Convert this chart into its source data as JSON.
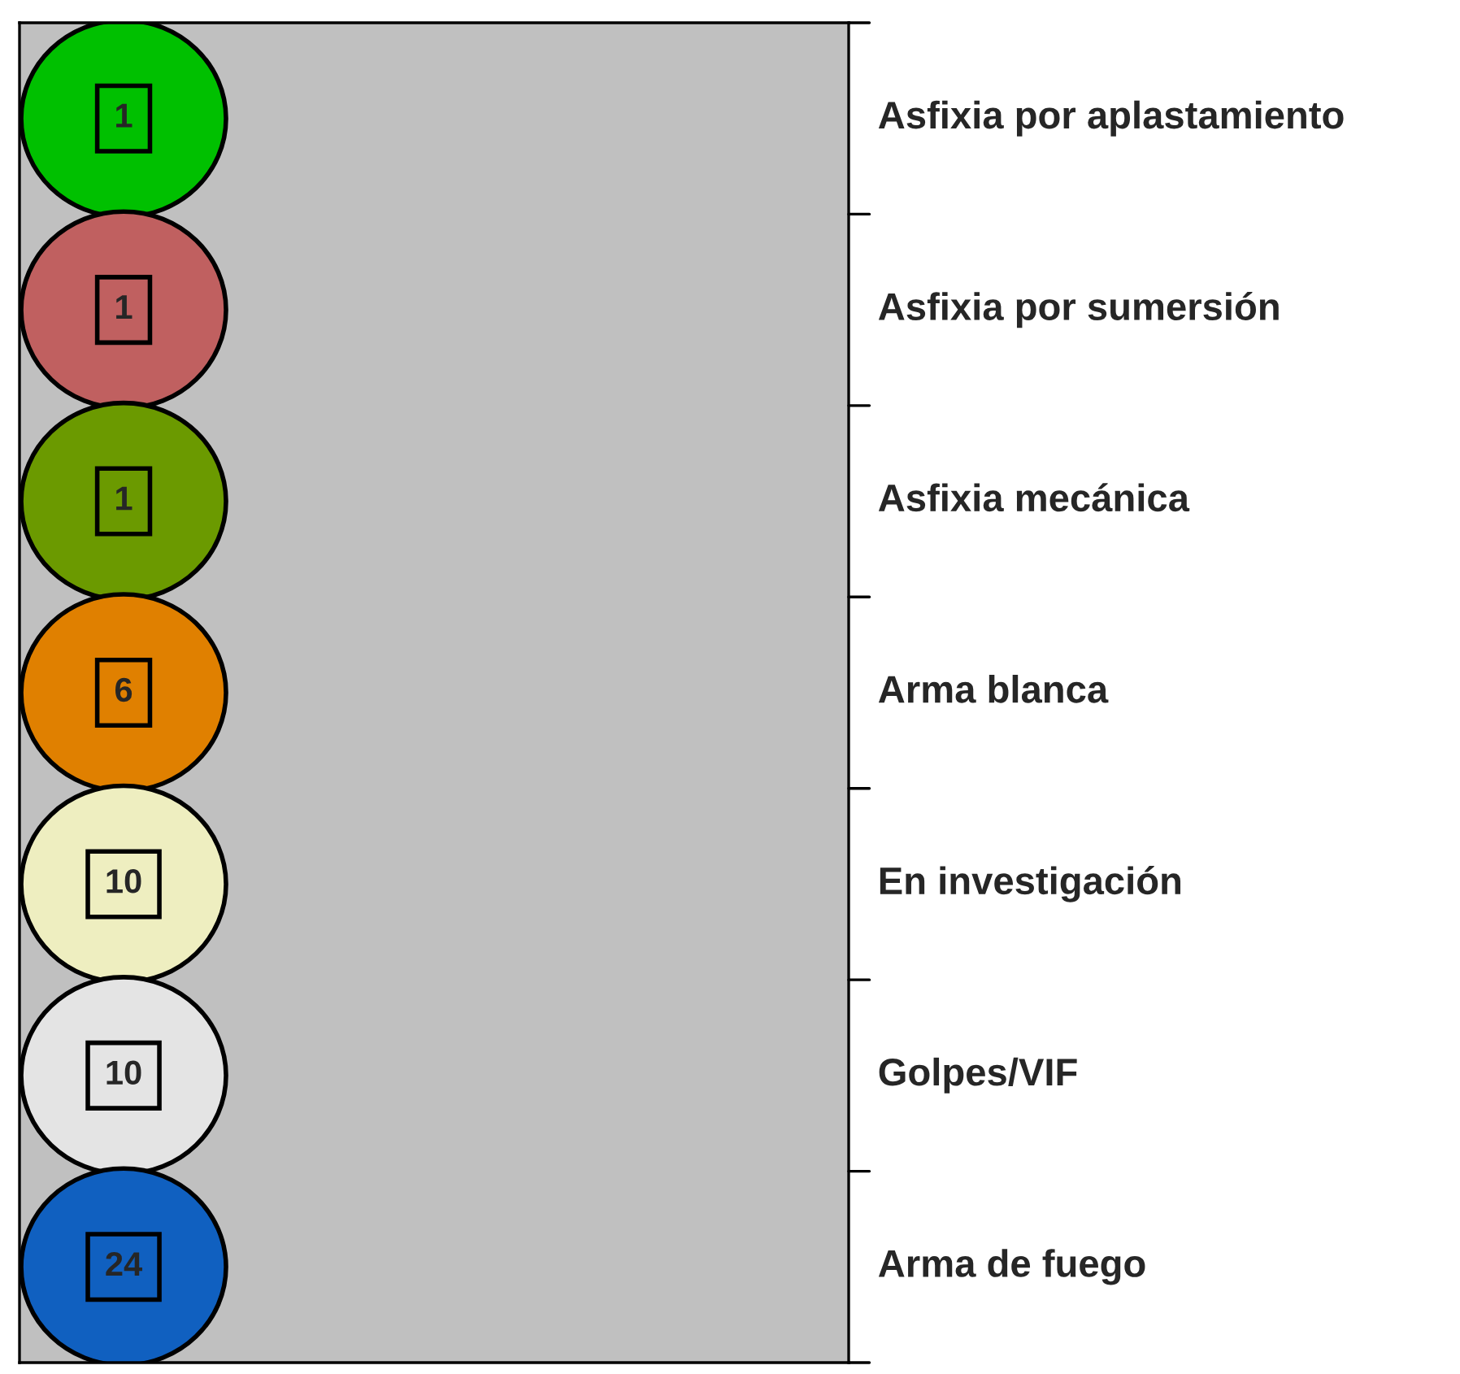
{
  "chart_data": {
    "type": "other",
    "categories": [
      "Asfixia por aplastamiento",
      "Asfixia por sumersión",
      "Asfixia mecánica",
      "Arma blanca",
      "En investigación",
      "Golpes/VIF",
      "Arma de fuego"
    ],
    "values": [
      1,
      1,
      1,
      6,
      10,
      10,
      24
    ],
    "colors": [
      "#00c000",
      "#c06060",
      "#6b9a00",
      "#e08000",
      "#eeeec0",
      "#e4e4e4",
      "#1060c0"
    ],
    "data_labels": true
  }
}
